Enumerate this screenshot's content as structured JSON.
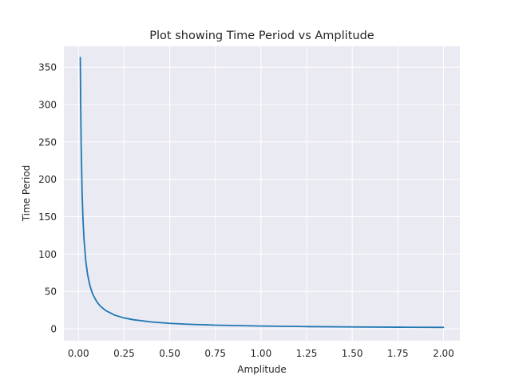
{
  "chart_data": {
    "type": "line",
    "title": "Plot showing Time Period vs Amplitude",
    "xlabel": "Amplitude",
    "ylabel": "Time Period",
    "xlim": [
      -0.08,
      2.09
    ],
    "ylim": [
      -16,
      378
    ],
    "xticks": [
      "0.00",
      "0.25",
      "0.50",
      "0.75",
      "1.00",
      "1.25",
      "1.50",
      "1.75",
      "2.00"
    ],
    "xtick_values": [
      0,
      0.25,
      0.5,
      0.75,
      1.0,
      1.25,
      1.5,
      1.75,
      2.0
    ],
    "yticks": [
      "0",
      "50",
      "100",
      "150",
      "200",
      "250",
      "300",
      "350"
    ],
    "ytick_values": [
      0,
      50,
      100,
      150,
      200,
      250,
      300,
      350
    ],
    "grid": true,
    "series_color": "#1f77b4",
    "series": [
      {
        "x": [
          0.01,
          0.012,
          0.015,
          0.02,
          0.025,
          0.03,
          0.04,
          0.05,
          0.06,
          0.07,
          0.08,
          0.1,
          0.12,
          0.15,
          0.2,
          0.25,
          0.3,
          0.4,
          0.5,
          0.6,
          0.75,
          1.0,
          1.25,
          1.5,
          1.75,
          2.0
        ],
        "y": [
          363,
          302,
          242,
          181,
          145,
          121,
          90.7,
          72.6,
          60.5,
          51.8,
          45.4,
          36.3,
          30.2,
          24.2,
          18.1,
          14.5,
          12.1,
          9.07,
          7.26,
          6.05,
          4.84,
          3.63,
          2.9,
          2.42,
          2.07,
          1.81
        ]
      }
    ]
  }
}
